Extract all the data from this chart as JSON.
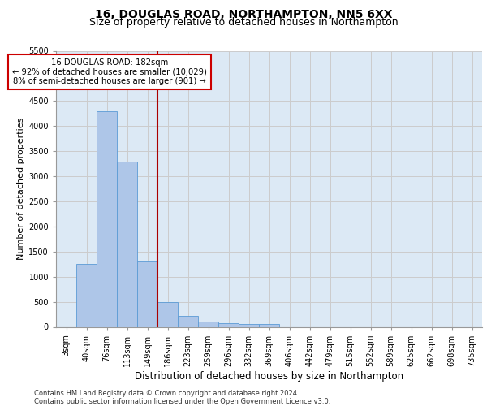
{
  "title_line1": "16, DOUGLAS ROAD, NORTHAMPTON, NN5 6XX",
  "title_line2": "Size of property relative to detached houses in Northampton",
  "xlabel": "Distribution of detached houses by size in Northampton",
  "ylabel": "Number of detached properties",
  "footnote": "Contains HM Land Registry data © Crown copyright and database right 2024.\nContains public sector information licensed under the Open Government Licence v3.0.",
  "bar_labels": [
    "3sqm",
    "40sqm",
    "76sqm",
    "113sqm",
    "149sqm",
    "186sqm",
    "223sqm",
    "259sqm",
    "296sqm",
    "332sqm",
    "369sqm",
    "406sqm",
    "442sqm",
    "479sqm",
    "515sqm",
    "552sqm",
    "589sqm",
    "625sqm",
    "662sqm",
    "698sqm",
    "735sqm"
  ],
  "bar_values": [
    0,
    1250,
    4300,
    3300,
    1300,
    500,
    225,
    100,
    75,
    50,
    50,
    0,
    0,
    0,
    0,
    0,
    0,
    0,
    0,
    0,
    0
  ],
  "bar_color": "#aec6e8",
  "bar_edge_color": "#5b9bd5",
  "highlight_line_label": "16 DOUGLAS ROAD: 182sqm",
  "annotation_line1": "← 92% of detached houses are smaller (10,029)",
  "annotation_line2": "8% of semi-detached houses are larger (901) →",
  "annotation_box_color": "#ffffff",
  "annotation_box_edge": "#cc0000",
  "vline_color": "#aa0000",
  "ylim": [
    0,
    5500
  ],
  "yticks": [
    0,
    500,
    1000,
    1500,
    2000,
    2500,
    3000,
    3500,
    4000,
    4500,
    5000,
    5500
  ],
  "grid_color": "#cccccc",
  "bg_color": "#dce9f5",
  "title_fontsize": 10,
  "subtitle_fontsize": 9,
  "tick_fontsize": 7,
  "label_fontsize": 8.5,
  "footnote_fontsize": 6,
  "ylabel_fontsize": 8
}
